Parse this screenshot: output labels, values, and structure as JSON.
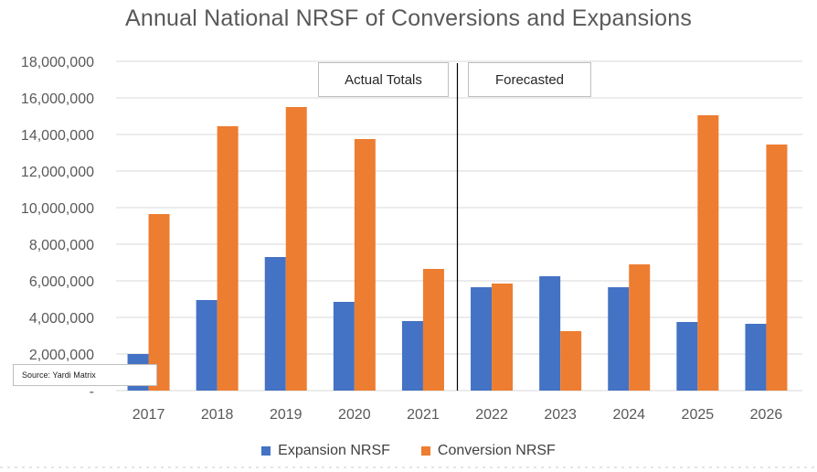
{
  "chart_data": {
    "type": "bar",
    "title": "Annual National NRSF of Conversions and Expansions",
    "categories": [
      "2017",
      "2018",
      "2019",
      "2020",
      "2021",
      "2022",
      "2023",
      "2024",
      "2025",
      "2026"
    ],
    "series": [
      {
        "name": "Expansion NRSF",
        "color": "#4472C4",
        "values": [
          2000000,
          4950000,
          7300000,
          4850000,
          3800000,
          5650000,
          6250000,
          5650000,
          3750000,
          3650000
        ]
      },
      {
        "name": "Conversion NRSF",
        "color": "#ED7D31",
        "values": [
          9650000,
          14450000,
          15500000,
          13750000,
          6650000,
          5850000,
          3250000,
          6900000,
          15050000,
          13450000
        ]
      }
    ],
    "ylim": [
      0,
      18000000
    ],
    "yticks": [
      "-",
      "2,000,000",
      "4,000,000",
      "6,000,000",
      "8,000,000",
      "10,000,000",
      "12,000,000",
      "14,000,000",
      "16,000,000",
      "18,000,000"
    ],
    "grid": true,
    "legend": "bottom",
    "annotations": {
      "actual": "Actual Totals",
      "forecast": "Forecasted",
      "source": "Source: Yardi Matrix"
    }
  }
}
